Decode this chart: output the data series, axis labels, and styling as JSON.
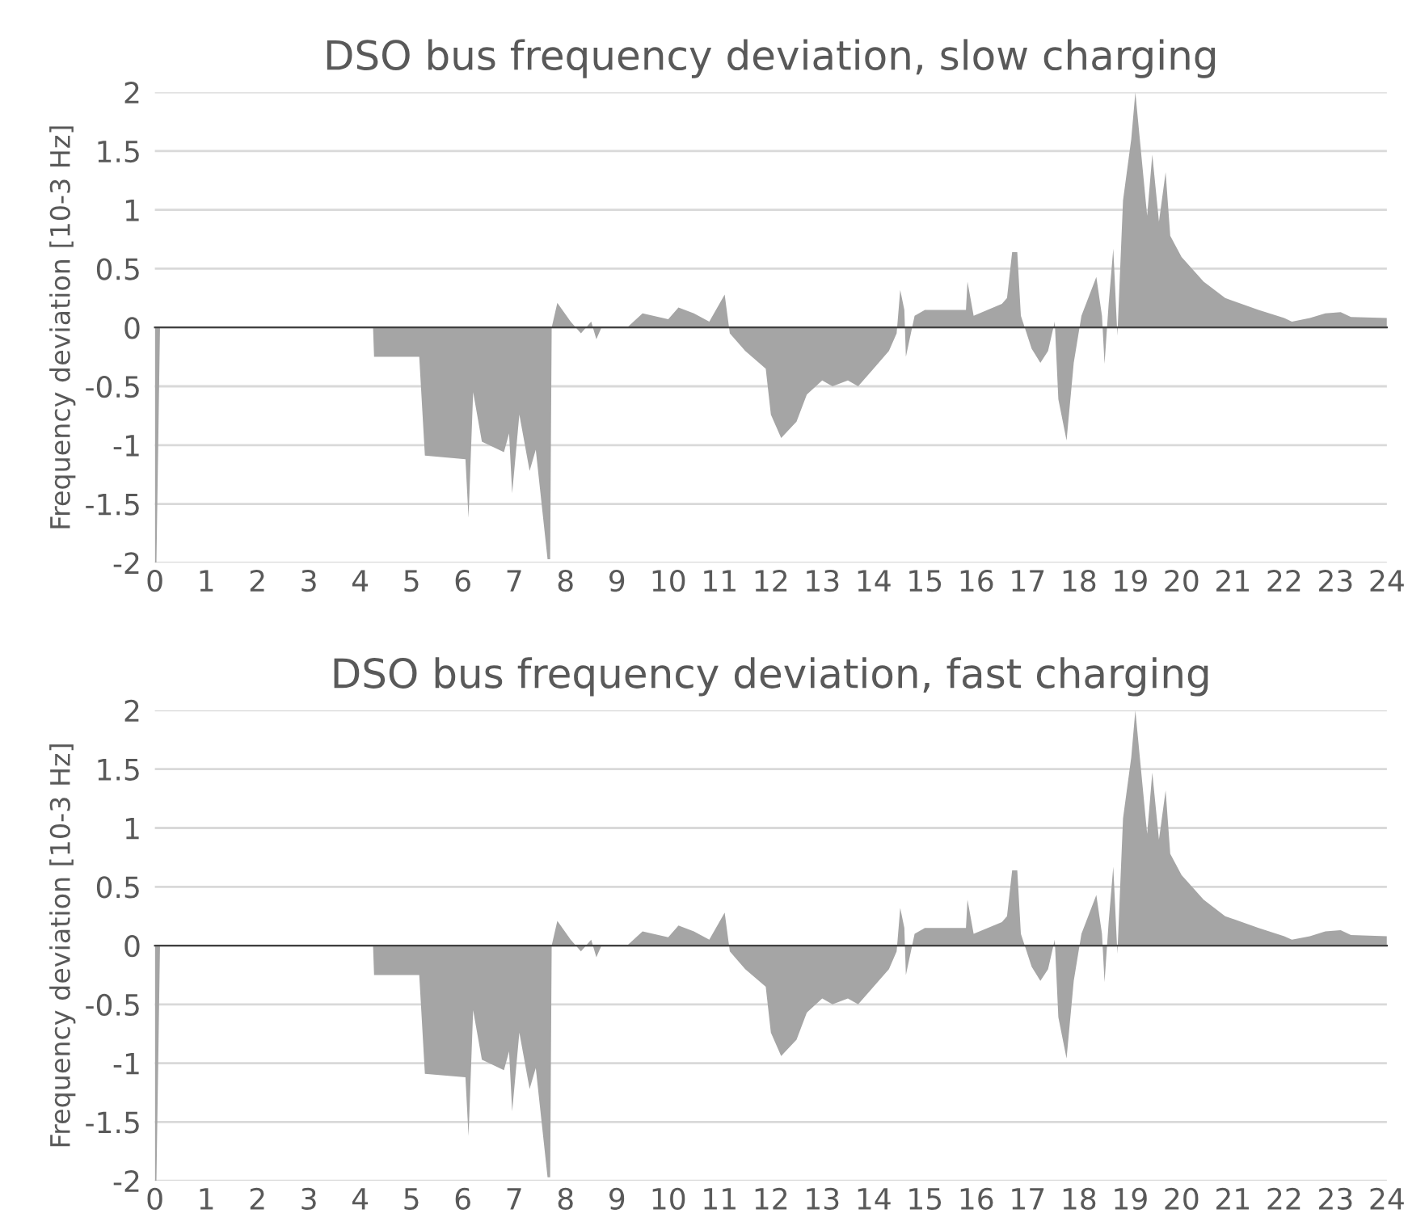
{
  "chart_data": [
    {
      "type": "area",
      "title": "DSO bus frequency deviation, slow charging",
      "ylabel": "Frequency deviation [10-3 Hz]",
      "series": [
        {
          "color": "#a5a5a5",
          "x": [
            0,
            0.03,
            0.1,
            4.25,
            4.27,
            5.15,
            5.26,
            6.05,
            6.11,
            6.2,
            6.37,
            6.8,
            6.9,
            6.96,
            7.1,
            7.3,
            7.42,
            7.65,
            7.7,
            7.73,
            7.84,
            8.1,
            8.3,
            8.5,
            8.6,
            8.7,
            9.2,
            9.5,
            10.0,
            10.2,
            10.5,
            10.8,
            11.1,
            11.2,
            11.5,
            11.9,
            12.0,
            12.2,
            12.5,
            12.7,
            13.0,
            13.2,
            13.5,
            13.7,
            14.0,
            14.3,
            14.45,
            14.52,
            14.6,
            14.63,
            14.8,
            15.0,
            15.5,
            15.8,
            15.83,
            15.95,
            16.5,
            16.6,
            16.7,
            16.8,
            16.87,
            17.08,
            17.25,
            17.4,
            17.53,
            17.6,
            17.76,
            17.9,
            18.05,
            18.34,
            18.45,
            18.5,
            18.58,
            18.67,
            18.75,
            18.86,
            19.02,
            19.1,
            19.33,
            19.43,
            19.56,
            19.69,
            19.78,
            20.0,
            20.43,
            20.85,
            21.5,
            22.0,
            22.15,
            22.5,
            22.8,
            23.1,
            23.3,
            24
          ],
          "values": [
            -2,
            -2,
            0,
            0,
            -0.25,
            -0.25,
            -1.09,
            -1.12,
            -1.62,
            -0.55,
            -0.97,
            -1.06,
            -0.9,
            -1.41,
            -0.74,
            -1.22,
            -1.04,
            -1.97,
            -1.97,
            0,
            0.21,
            0.05,
            -0.05,
            0.05,
            -0.1,
            0,
            0,
            0.12,
            0.07,
            0.17,
            0.12,
            0.05,
            0.28,
            -0.05,
            -0.2,
            -0.35,
            -0.74,
            -0.94,
            -0.8,
            -0.57,
            -0.45,
            -0.5,
            -0.45,
            -0.5,
            -0.35,
            -0.2,
            -0.05,
            0.32,
            0.15,
            -0.25,
            0.1,
            0.15,
            0.15,
            0.15,
            0.39,
            0.1,
            0.2,
            0.25,
            0.64,
            0.64,
            0.1,
            -0.18,
            -0.3,
            -0.2,
            0.05,
            -0.61,
            -0.96,
            -0.3,
            0.1,
            0.43,
            0.1,
            -0.31,
            0.2,
            0.67,
            -0.07,
            1.08,
            1.6,
            2.0,
            0.95,
            1.47,
            0.9,
            1.32,
            0.78,
            0.6,
            0.39,
            0.25,
            0.15,
            0.08,
            0.05,
            0.08,
            0.12,
            0.13,
            0.09,
            0.08
          ]
        }
      ],
      "xlim": [
        0,
        24
      ],
      "xticks": [
        0,
        1,
        2,
        3,
        4,
        5,
        6,
        7,
        8,
        9,
        10,
        11,
        12,
        13,
        14,
        15,
        16,
        17,
        18,
        19,
        20,
        21,
        22,
        23,
        24
      ],
      "ylim": [
        -2,
        2
      ],
      "yticks": [
        -2,
        -1.5,
        -1,
        -0.5,
        0,
        0.5,
        1,
        1.5,
        2
      ],
      "grid": "y"
    },
    {
      "type": "area",
      "title": "DSO bus frequency deviation, fast charging",
      "ylabel": "Frequency deviation [10-3 Hz]",
      "series": [
        {
          "color": "#a5a5a5",
          "x": [
            0,
            0.03,
            0.1,
            4.25,
            4.27,
            5.15,
            5.26,
            6.05,
            6.11,
            6.2,
            6.37,
            6.8,
            6.9,
            6.96,
            7.1,
            7.3,
            7.42,
            7.65,
            7.7,
            7.73,
            7.84,
            8.1,
            8.3,
            8.5,
            8.6,
            8.7,
            9.2,
            9.5,
            10.0,
            10.2,
            10.5,
            10.8,
            11.1,
            11.2,
            11.5,
            11.9,
            12.0,
            12.2,
            12.5,
            12.7,
            13.0,
            13.2,
            13.5,
            13.7,
            14.0,
            14.3,
            14.45,
            14.52,
            14.6,
            14.63,
            14.8,
            15.0,
            15.5,
            15.8,
            15.83,
            15.95,
            16.5,
            16.6,
            16.7,
            16.8,
            16.87,
            17.08,
            17.25,
            17.4,
            17.53,
            17.6,
            17.76,
            17.9,
            18.05,
            18.34,
            18.45,
            18.5,
            18.58,
            18.67,
            18.75,
            18.86,
            19.02,
            19.1,
            19.33,
            19.43,
            19.56,
            19.69,
            19.78,
            20.0,
            20.43,
            20.85,
            21.5,
            22.0,
            22.15,
            22.5,
            22.8,
            23.1,
            23.3,
            24
          ],
          "values": [
            -2,
            -2,
            0,
            0,
            -0.25,
            -0.25,
            -1.09,
            -1.12,
            -1.62,
            -0.55,
            -0.97,
            -1.06,
            -0.9,
            -1.41,
            -0.74,
            -1.22,
            -1.04,
            -1.97,
            -1.97,
            0,
            0.21,
            0.05,
            -0.05,
            0.05,
            -0.1,
            0,
            0,
            0.12,
            0.07,
            0.17,
            0.12,
            0.05,
            0.28,
            -0.05,
            -0.2,
            -0.35,
            -0.74,
            -0.94,
            -0.8,
            -0.57,
            -0.45,
            -0.5,
            -0.45,
            -0.5,
            -0.35,
            -0.2,
            -0.05,
            0.32,
            0.15,
            -0.25,
            0.1,
            0.15,
            0.15,
            0.15,
            0.39,
            0.1,
            0.2,
            0.25,
            0.64,
            0.64,
            0.1,
            -0.18,
            -0.3,
            -0.2,
            0.05,
            -0.61,
            -0.96,
            -0.3,
            0.1,
            0.43,
            0.1,
            -0.31,
            0.2,
            0.67,
            -0.07,
            1.08,
            1.6,
            2.0,
            0.95,
            1.47,
            0.9,
            1.32,
            0.78,
            0.6,
            0.39,
            0.25,
            0.15,
            0.08,
            0.05,
            0.08,
            0.12,
            0.13,
            0.09,
            0.08
          ]
        }
      ],
      "xlim": [
        0,
        24
      ],
      "xticks": [
        0,
        1,
        2,
        3,
        4,
        5,
        6,
        7,
        8,
        9,
        10,
        11,
        12,
        13,
        14,
        15,
        16,
        17,
        18,
        19,
        20,
        21,
        22,
        23,
        24
      ],
      "ylim": [
        -2,
        2
      ],
      "yticks": [
        -2,
        -1.5,
        -1,
        -0.5,
        0,
        0.5,
        1,
        1.5,
        2
      ],
      "grid": "y"
    }
  ]
}
